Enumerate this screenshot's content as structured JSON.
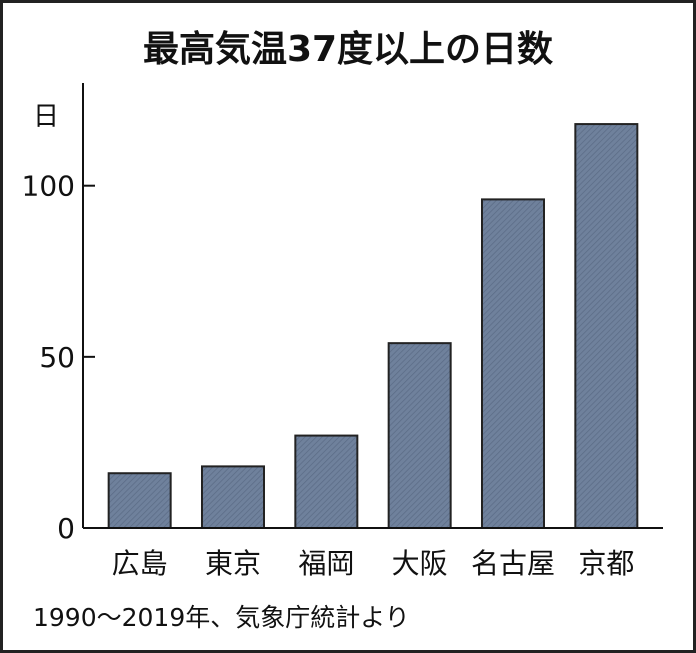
{
  "chart_data": {
    "type": "bar",
    "title": "最高気温37度以上の日数",
    "ylabel": "日",
    "categories": [
      "広島",
      "東京",
      "福岡",
      "大阪",
      "名古屋",
      "京都"
    ],
    "values": [
      16,
      18,
      27,
      54,
      96,
      118
    ],
    "ylim": [
      0,
      130
    ],
    "yticks": [
      0,
      50,
      100
    ],
    "ytick_labels": [
      "0",
      "50",
      "100"
    ],
    "grid": false,
    "bar_color": "#6f819c",
    "note": "1990〜2019年、気象庁統計より"
  }
}
